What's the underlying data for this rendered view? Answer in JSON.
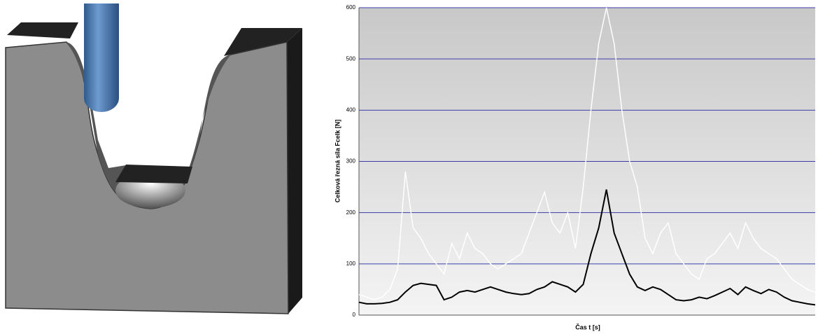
{
  "chart_data": {
    "type": "line",
    "ylabel": "Celková řezná síla Fcelk [N]",
    "xlabel": "Čas t [s]",
    "categories": [
      null,
      null,
      null,
      null,
      null,
      null,
      null,
      null,
      null,
      null,
      null,
      null,
      null,
      null,
      null,
      null,
      null,
      null,
      null,
      null,
      null,
      null,
      null,
      null,
      null,
      null,
      null,
      null,
      null,
      null,
      null,
      null,
      null,
      null,
      null,
      null,
      null,
      null,
      null,
      null,
      null,
      null,
      null,
      null,
      null,
      null,
      null,
      null,
      null,
      null,
      null,
      null,
      null,
      null,
      null,
      null,
      null,
      null,
      null,
      null
    ],
    "series": [
      {
        "color": "#ffffff",
        "values": [
          40,
          35,
          30,
          35,
          50,
          90,
          280,
          170,
          150,
          120,
          100,
          80,
          140,
          110,
          160,
          130,
          120,
          100,
          90,
          100,
          110,
          120,
          160,
          200,
          240,
          180,
          160,
          200,
          130,
          250,
          400,
          530,
          600,
          530,
          400,
          300,
          250,
          150,
          120,
          160,
          180,
          120,
          100,
          80,
          70,
          110,
          120,
          140,
          160,
          130,
          180,
          150,
          130,
          120,
          110,
          90,
          70,
          60,
          50,
          45
        ]
      },
      {
        "color": "#000000",
        "values": [
          25,
          22,
          22,
          23,
          25,
          30,
          45,
          58,
          62,
          60,
          58,
          30,
          35,
          45,
          48,
          45,
          50,
          55,
          50,
          45,
          42,
          40,
          42,
          50,
          55,
          65,
          60,
          55,
          45,
          60,
          120,
          170,
          245,
          160,
          120,
          80,
          55,
          48,
          55,
          50,
          40,
          30,
          28,
          30,
          35,
          32,
          38,
          45,
          52,
          40,
          55,
          48,
          42,
          50,
          45,
          35,
          28,
          25,
          22,
          20
        ]
      }
    ],
    "ylim": [
      0,
      600
    ],
    "yticks": [
      0,
      100,
      200,
      300,
      400,
      500,
      600
    ],
    "grid": true,
    "grid_color": "#3c3ca8"
  }
}
